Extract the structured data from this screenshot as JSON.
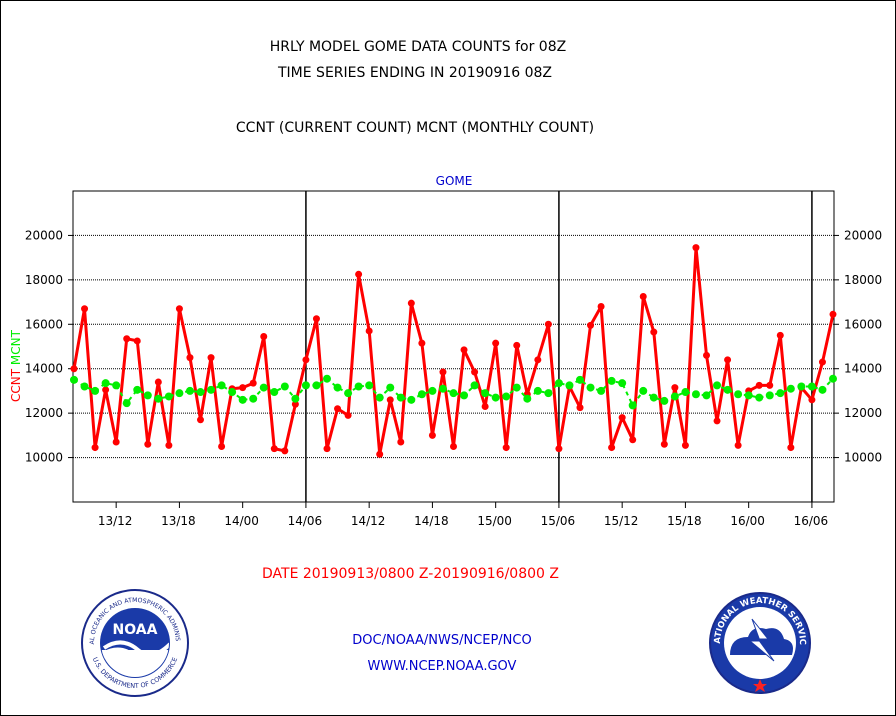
{
  "header": {
    "line1": "HRLY MODEL GOME DATA COUNTS for 08Z",
    "line2": "TIME SERIES ENDING IN 20190916 08Z",
    "line3": "CCNT (CURRENT COUNT) MCNT (MONTHLY COUNT)"
  },
  "footer": {
    "date_range": "DATE 20190913/0800 Z-20190916/0800 Z",
    "org": "DOC/NOAA/NWS/NCEP/NCO",
    "url": "WWW.NCEP.NOAA.GOV"
  },
  "logos": {
    "noaa": {
      "center": "NOAA",
      "ring_top": "NATIONAL OCEANIC AND ATMOSPHERIC ADMINISTRATION",
      "ring_bottom": "U.S. DEPARTMENT OF COMMERCE"
    },
    "nws": {
      "ring_top": "NATIONAL WEATHER SERVICE"
    }
  },
  "chart_data": {
    "type": "line",
    "title": "GOME",
    "ylabel_left": [
      "CCNT",
      "MCNT"
    ],
    "ylim": [
      8000,
      22000
    ],
    "yticks": [
      10000,
      12000,
      14000,
      16000,
      18000,
      20000
    ],
    "ytick_labels": [
      "10000",
      "12000",
      "14000",
      "16000",
      "18000",
      "20000"
    ],
    "xlim": [
      0,
      72
    ],
    "xticks": [
      4,
      10,
      16,
      22,
      28,
      34,
      40,
      46,
      52,
      58,
      64,
      70
    ],
    "xtick_labels": [
      "13/12",
      "13/18",
      "14/00",
      "14/06",
      "14/12",
      "14/18",
      "15/00",
      "15/06",
      "15/12",
      "15/18",
      "16/00",
      "16/06"
    ],
    "day_boundaries": [
      22,
      46,
      70
    ],
    "grid": true,
    "series": [
      {
        "name": "CCNT",
        "color": "#ff0000",
        "values": [
          14000,
          16700,
          10450,
          13050,
          10700,
          15350,
          15250,
          10600,
          13400,
          10550,
          16700,
          14500,
          11700,
          14500,
          10500,
          13100,
          13150,
          13350,
          15450,
          10400,
          10300,
          12400,
          14400,
          16250,
          10400,
          12200,
          11900,
          18250,
          15700,
          10150,
          12600,
          10700,
          16950,
          15150,
          11000,
          13850,
          10500,
          14850,
          13850,
          12300,
          15150,
          10450,
          15050,
          12850,
          14400,
          16000,
          10400,
          13200,
          12250,
          15950,
          16800,
          10450,
          11800,
          10800,
          17250,
          15650,
          10600,
          13150,
          10550,
          19450,
          14600,
          11650,
          14400,
          10550,
          13000,
          13250,
          13250,
          15500,
          10450,
          13150,
          12600,
          14300,
          16450
        ]
      },
      {
        "name": "MCNT",
        "color": "#00ee00",
        "values": [
          13500,
          13200,
          13000,
          13350,
          13250,
          12450,
          13050,
          12800,
          12650,
          12750,
          12900,
          13000,
          12950,
          13050,
          13250,
          12950,
          12600,
          12650,
          13150,
          12950,
          13200,
          12650,
          13250,
          13250,
          13550,
          13150,
          12900,
          13200,
          13250,
          12700,
          13150,
          12700,
          12600,
          12850,
          13000,
          13100,
          12900,
          12800,
          13250,
          12900,
          12700,
          12750,
          13150,
          12650,
          13000,
          12900,
          13350,
          13250,
          13500,
          13150,
          13000,
          13450,
          13350,
          12350,
          13000,
          12700,
          12550,
          12750,
          12950,
          12850,
          12800,
          13250,
          13050,
          12850,
          12800,
          12700,
          12800,
          12900,
          13100,
          13200,
          13200,
          13050,
          13550
        ]
      }
    ]
  }
}
